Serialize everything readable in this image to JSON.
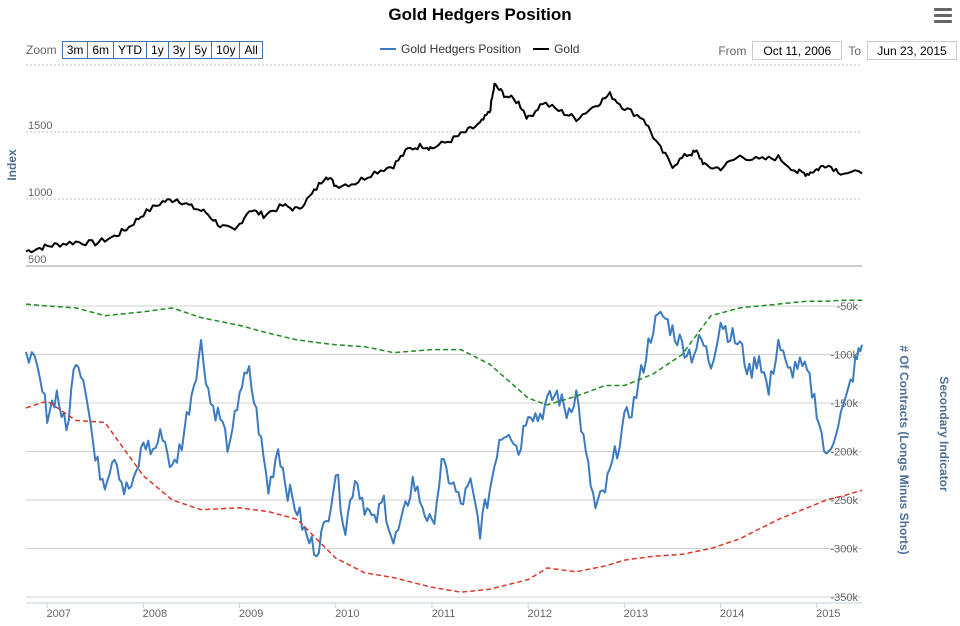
{
  "title": "Gold Hedgers Position",
  "zoom": {
    "label": "Zoom",
    "buttons": [
      "3m",
      "6m",
      "YTD",
      "1y",
      "3y",
      "5y",
      "10y",
      "All"
    ]
  },
  "range": {
    "from_label": "From",
    "from_value": "Oct 11, 2006",
    "to_label": "To",
    "to_value": "Jun 23, 2015"
  },
  "legend": [
    {
      "name": "Gold Hedgers Position",
      "color": "#3c7bc0"
    },
    {
      "name": "Gold",
      "color": "#000000"
    }
  ],
  "menu_icon": "hamburger-menu-icon",
  "chart_data": {
    "type": "line",
    "x_ticks": [
      "2007",
      "2008",
      "2009",
      "2010",
      "2011",
      "2012",
      "2013",
      "2014",
      "2015"
    ],
    "x_range": [
      "2006-10-11",
      "2015-06-23"
    ],
    "panes": [
      {
        "name": "top",
        "ylabel": "Index",
        "yticks": [
          "500",
          "1000",
          "1500"
        ],
        "ylim": [
          500,
          2000
        ],
        "series": [
          {
            "name": "Gold",
            "color": "#000000",
            "style": "solid",
            "x": [
              2006.78,
              2006.95,
              2007.1,
              2007.3,
              2007.5,
              2007.7,
              2007.85,
              2008.0,
              2008.2,
              2008.35,
              2008.5,
              2008.65,
              2008.8,
              2008.95,
              2009.1,
              2009.25,
              2009.45,
              2009.6,
              2009.75,
              2009.9,
              2010.0,
              2010.2,
              2010.4,
              2010.6,
              2010.75,
              2010.9,
              2011.0,
              2011.2,
              2011.35,
              2011.5,
              2011.6,
              2011.65,
              2011.75,
              2011.9,
              2012.0,
              2012.15,
              2012.35,
              2012.5,
              2012.7,
              2012.85,
              2013.0,
              2013.2,
              2013.35,
              2013.5,
              2013.65,
              2013.75,
              2013.85,
              2014.0,
              2014.2,
              2014.4,
              2014.6,
              2014.8,
              2014.9,
              2015.0,
              2015.1,
              2015.25,
              2015.47
            ],
            "y": [
              610,
              640,
              660,
              680,
              670,
              720,
              790,
              890,
              980,
              1000,
              940,
              900,
              800,
              760,
              920,
              880,
              950,
              920,
              1030,
              1180,
              1100,
              1120,
              1200,
              1250,
              1370,
              1400,
              1380,
              1440,
              1500,
              1560,
              1650,
              1850,
              1780,
              1720,
              1600,
              1720,
              1650,
              1600,
              1700,
              1780,
              1680,
              1600,
              1400,
              1250,
              1330,
              1350,
              1240,
              1230,
              1320,
              1290,
              1310,
              1200,
              1190,
              1220,
              1260,
              1200,
              1190
            ]
          }
        ]
      },
      {
        "name": "bottom",
        "ylabel": "# Of Contracts (Longs Minus Shorts)",
        "ylabel2": "Secondary Indicator",
        "yticks": [
          "-350k",
          "-300k",
          "-250k",
          "-200k",
          "-150k",
          "-100k",
          "-50k"
        ],
        "ylim": [
          -350000,
          -50000
        ],
        "series": [
          {
            "name": "Gold Hedgers Position",
            "color": "#3c7bc0",
            "style": "solid",
            "x": [
              2006.78,
              2006.9,
              2007.0,
              2007.1,
              2007.2,
              2007.3,
              2007.4,
              2007.5,
              2007.6,
              2007.7,
              2007.8,
              2007.9,
              2008.0,
              2008.1,
              2008.2,
              2008.3,
              2008.4,
              2008.5,
              2008.6,
              2008.7,
              2008.8,
              2008.9,
              2009.0,
              2009.1,
              2009.2,
              2009.3,
              2009.4,
              2009.5,
              2009.6,
              2009.7,
              2009.8,
              2009.9,
              2010.0,
              2010.1,
              2010.2,
              2010.3,
              2010.4,
              2010.5,
              2010.6,
              2010.7,
              2010.8,
              2010.9,
              2011.0,
              2011.1,
              2011.2,
              2011.3,
              2011.4,
              2011.5,
              2011.6,
              2011.7,
              2011.8,
              2011.9,
              2012.0,
              2012.1,
              2012.2,
              2012.3,
              2012.4,
              2012.5,
              2012.6,
              2012.7,
              2012.8,
              2012.9,
              2013.0,
              2013.1,
              2013.2,
              2013.3,
              2013.4,
              2013.5,
              2013.6,
              2013.7,
              2013.8,
              2013.9,
              2014.0,
              2014.1,
              2014.2,
              2014.3,
              2014.4,
              2014.5,
              2014.6,
              2014.7,
              2014.8,
              2014.9,
              2015.0,
              2015.1,
              2015.2,
              2015.3,
              2015.4,
              2015.47
            ],
            "y": [
              -90000,
              -120000,
              -160000,
              -140000,
              -180000,
              -100000,
              -130000,
              -210000,
              -230000,
              -200000,
              -240000,
              -235000,
              -190000,
              -200000,
              -180000,
              -220000,
              -190000,
              -140000,
              -90000,
              -150000,
              -165000,
              -200000,
              -135000,
              -120000,
              -175000,
              -240000,
              -195000,
              -240000,
              -260000,
              -290000,
              -300000,
              -275000,
              -220000,
              -280000,
              -225000,
              -255000,
              -275000,
              -250000,
              -295000,
              -270000,
              -230000,
              -255000,
              -280000,
              -215000,
              -230000,
              -255000,
              -235000,
              -280000,
              -240000,
              -185000,
              -175000,
              -200000,
              -155000,
              -165000,
              -150000,
              -140000,
              -160000,
              -140000,
              -205000,
              -260000,
              -240000,
              -205000,
              -170000,
              -150000,
              -110000,
              -70000,
              -60000,
              -75000,
              -90000,
              -100000,
              -85000,
              -110000,
              -65000,
              -80000,
              -90000,
              -120000,
              -100000,
              -140000,
              -85000,
              -120000,
              -110000,
              -120000,
              -155000,
              -210000,
              -175000,
              -150000,
              -110000,
              -90000
            ]
          },
          {
            "name": "",
            "color": "#228b22",
            "style": "dashed",
            "x": [
              2006.78,
              2007.0,
              2007.3,
              2007.6,
              2008.0,
              2008.3,
              2008.6,
              2009.0,
              2009.3,
              2009.6,
              2010.0,
              2010.3,
              2010.6,
              2011.0,
              2011.3,
              2011.6,
              2012.0,
              2012.2,
              2012.5,
              2012.8,
              2013.0,
              2013.3,
              2013.6,
              2013.9,
              2014.2,
              2014.6,
              2014.9,
              2015.1,
              2015.3,
              2015.47
            ],
            "y": [
              -48000,
              -50000,
              -52000,
              -60000,
              -56000,
              -52000,
              -62000,
              -70000,
              -78000,
              -85000,
              -90000,
              -92000,
              -98000,
              -95000,
              -95000,
              -110000,
              -145000,
              -152000,
              -143000,
              -132000,
              -132000,
              -120000,
              -100000,
              -60000,
              -52000,
              -48000,
              -45000,
              -45000,
              -44000,
              -44000
            ]
          },
          {
            "name": "",
            "color": "#d93a2b",
            "style": "dashed",
            "x": [
              2006.78,
              2007.0,
              2007.3,
              2007.6,
              2008.0,
              2008.3,
              2008.6,
              2009.0,
              2009.3,
              2009.6,
              2010.0,
              2010.3,
              2010.6,
              2011.0,
              2011.3,
              2011.6,
              2012.0,
              2012.2,
              2012.5,
              2012.8,
              2013.0,
              2013.3,
              2013.6,
              2013.9,
              2014.2,
              2014.6,
              2014.9,
              2015.1,
              2015.3,
              2015.47
            ],
            "y": [
              -155000,
              -148000,
              -168000,
              -170000,
              -225000,
              -250000,
              -260000,
              -258000,
              -262000,
              -270000,
              -310000,
              -325000,
              -330000,
              -340000,
              -345000,
              -342000,
              -332000,
              -320000,
              -324000,
              -318000,
              -312000,
              -308000,
              -306000,
              -300000,
              -290000,
              -270000,
              -258000,
              -250000,
              -245000,
              -240000
            ]
          }
        ]
      }
    ]
  }
}
